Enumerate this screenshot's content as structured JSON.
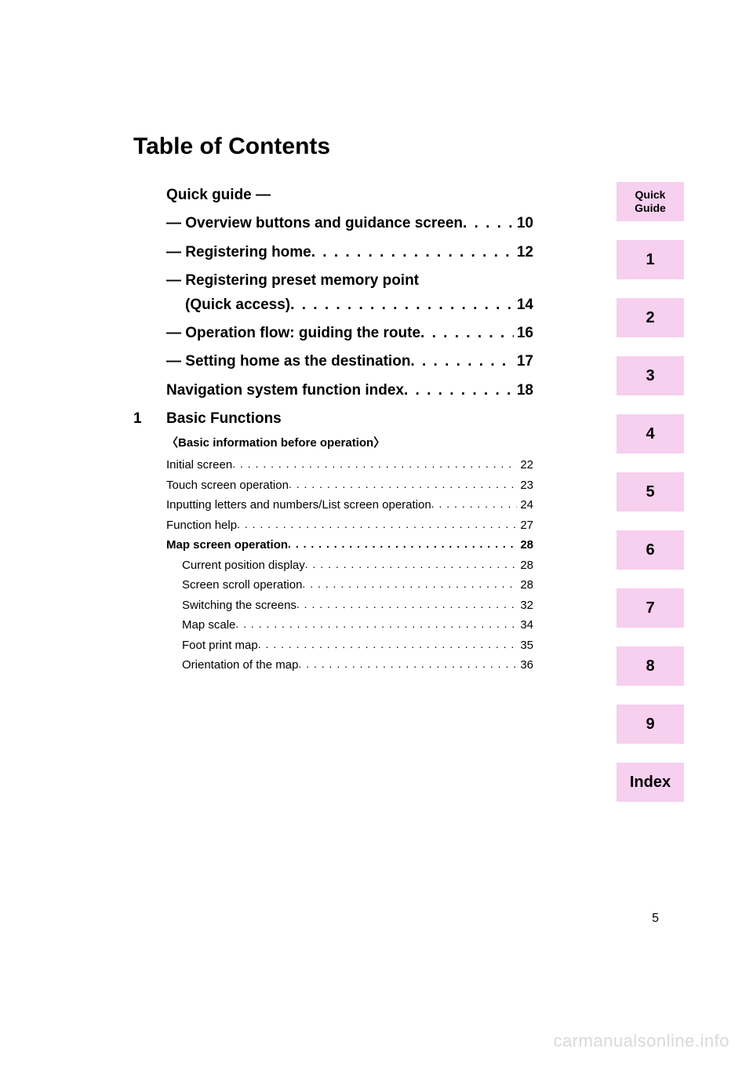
{
  "title": "Table of Contents",
  "quick_guide_heading": "Quick guide —",
  "quick_entries": [
    {
      "label": "— Overview buttons and guidance screen ",
      "page": "10"
    },
    {
      "label": "— Registering home  ",
      "page": "12"
    }
  ],
  "wrap_entry": {
    "line1": "— Registering preset memory point",
    "line2_label": "(Quick access) ",
    "page": "14"
  },
  "quick_entries2": [
    {
      "label": "— Operation flow: guiding the route ",
      "page": "16"
    },
    {
      "label": "— Setting home as the destination  ",
      "page": "17"
    },
    {
      "label": "Navigation system function index  ",
      "page": "18"
    }
  ],
  "section": {
    "number": "1",
    "title": "Basic Functions",
    "subtitle": "〈Basic information before operation〉"
  },
  "sub_entries": [
    {
      "label": "Initial screen ",
      "page": "22",
      "bold": false,
      "indent": 0
    },
    {
      "label": "Touch screen operation  ",
      "page": "23",
      "bold": false,
      "indent": 0
    },
    {
      "label": "Inputting letters and numbers/List screen operation  ",
      "page": "24",
      "bold": false,
      "indent": 0
    },
    {
      "label": "Function help ",
      "page": "27",
      "bold": false,
      "indent": 0
    },
    {
      "label": "Map screen operation ",
      "page": "28",
      "bold": true,
      "indent": 0
    },
    {
      "label": "Current position display  ",
      "page": "28",
      "bold": false,
      "indent": 1
    },
    {
      "label": "Screen scroll operation ",
      "page": "28",
      "bold": false,
      "indent": 1
    },
    {
      "label": "Switching the screens ",
      "page": "32",
      "bold": false,
      "indent": 1
    },
    {
      "label": "Map scale  ",
      "page": "34",
      "bold": false,
      "indent": 1
    },
    {
      "label": "Foot print map  ",
      "page": "35",
      "bold": false,
      "indent": 1
    },
    {
      "label": "Orientation of the map ",
      "page": "36",
      "bold": false,
      "indent": 1
    }
  ],
  "tabs": [
    {
      "label": "Quick\nGuide",
      "small": true
    },
    {
      "label": "1",
      "small": false
    },
    {
      "label": "2",
      "small": false
    },
    {
      "label": "3",
      "small": false
    },
    {
      "label": "4",
      "small": false
    },
    {
      "label": "5",
      "small": false
    },
    {
      "label": "6",
      "small": false
    },
    {
      "label": "7",
      "small": false
    },
    {
      "label": "8",
      "small": false
    },
    {
      "label": "9",
      "small": false
    },
    {
      "label": "Index",
      "small": false
    }
  ],
  "page_number": "5",
  "watermark": "carmanualsonline.info",
  "colors": {
    "tab_bg": "#f7cfef",
    "text": "#000000",
    "watermark": "#d9d9d9",
    "background": "#ffffff"
  },
  "dot_fill_bold": " .  .  .  .  .  .  .  .  .  .  .  .  .  .  .  .  .  .  .  .  .  .  .  .  .  .  .  .  .  .  .  .  .  .  .  .  .  .  .  .  .  .  .  .  .  .  .  .  .  . ",
  "dot_fill_small": " . . . . . . . . . . . . . . . . . . . . . . . . . . . . . . . . . . . . . . . . . . . . . . . . . . . . . . . . . . . . . . . . . . . . . . . . . . . . . . . . "
}
